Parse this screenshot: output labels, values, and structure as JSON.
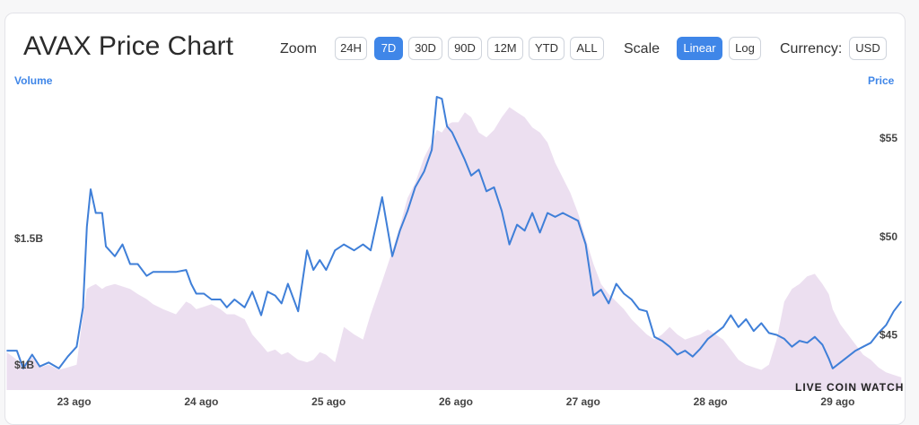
{
  "title": "AVAX Price Chart",
  "controls": {
    "zoom_label": "Zoom",
    "zoom_buttons": [
      "24H",
      "7D",
      "30D",
      "90D",
      "12M",
      "YTD",
      "ALL"
    ],
    "zoom_active": "7D",
    "scale_label": "Scale",
    "scale_buttons": [
      "Linear",
      "Log"
    ],
    "scale_active": "Linear",
    "currency_label": "Currency:",
    "currency_value": "USD"
  },
  "watermark": "LIVE COIN WATCH",
  "colors": {
    "price_line": "#3f7fd8",
    "volume_fill": "#ecdff0",
    "accent": "#3f86e8"
  },
  "chart_data": {
    "type": "line",
    "title": "AVAX Price Chart",
    "x_ticks": [
      "23 ago",
      "24 ago",
      "25 ago",
      "26 ago",
      "27 ago",
      "28 ago",
      "29 ago"
    ],
    "y_left": {
      "label": "Volume",
      "ticks": [
        "$1B",
        "$1.5B"
      ],
      "tick_values": [
        1.0,
        1.5
      ],
      "range": [
        0.9,
        2.1
      ]
    },
    "y_right": {
      "label": "Price",
      "ticks": [
        "$45",
        "$50",
        "$55"
      ],
      "tick_values": [
        45,
        50,
        55
      ],
      "range": [
        42.2,
        57.6
      ]
    },
    "x_range_days": [
      -0.54,
      6.54
    ],
    "series": [
      {
        "name": "Price",
        "axis": "right",
        "points": [
          [
            -0.53,
            44.2
          ],
          [
            -0.45,
            44.2
          ],
          [
            -0.4,
            43.3
          ],
          [
            -0.33,
            44.0
          ],
          [
            -0.27,
            43.4
          ],
          [
            -0.2,
            43.6
          ],
          [
            -0.12,
            43.3
          ],
          [
            -0.05,
            43.9
          ],
          [
            0.02,
            44.4
          ],
          [
            0.07,
            46.4
          ],
          [
            0.1,
            50.5
          ],
          [
            0.13,
            52.4
          ],
          [
            0.17,
            51.2
          ],
          [
            0.22,
            51.2
          ],
          [
            0.25,
            49.5
          ],
          [
            0.32,
            49.0
          ],
          [
            0.38,
            49.6
          ],
          [
            0.44,
            48.6
          ],
          [
            0.5,
            48.6
          ],
          [
            0.57,
            48.0
          ],
          [
            0.62,
            48.2
          ],
          [
            0.7,
            48.2
          ],
          [
            0.8,
            48.2
          ],
          [
            0.88,
            48.3
          ],
          [
            0.92,
            47.6
          ],
          [
            0.96,
            47.1
          ],
          [
            1.02,
            47.1
          ],
          [
            1.08,
            46.8
          ],
          [
            1.15,
            46.8
          ],
          [
            1.2,
            46.4
          ],
          [
            1.26,
            46.8
          ],
          [
            1.34,
            46.4
          ],
          [
            1.4,
            47.2
          ],
          [
            1.47,
            46.0
          ],
          [
            1.52,
            47.2
          ],
          [
            1.58,
            47.0
          ],
          [
            1.63,
            46.6
          ],
          [
            1.68,
            47.6
          ],
          [
            1.76,
            46.2
          ],
          [
            1.83,
            49.3
          ],
          [
            1.88,
            48.3
          ],
          [
            1.93,
            48.8
          ],
          [
            1.98,
            48.3
          ],
          [
            2.05,
            49.3
          ],
          [
            2.12,
            49.6
          ],
          [
            2.2,
            49.3
          ],
          [
            2.27,
            49.6
          ],
          [
            2.33,
            49.3
          ],
          [
            2.42,
            52.0
          ],
          [
            2.5,
            49.0
          ],
          [
            2.56,
            50.3
          ],
          [
            2.62,
            51.3
          ],
          [
            2.68,
            52.5
          ],
          [
            2.75,
            53.3
          ],
          [
            2.81,
            54.4
          ],
          [
            2.85,
            57.1
          ],
          [
            2.89,
            57.0
          ],
          [
            2.93,
            55.6
          ],
          [
            2.97,
            55.3
          ],
          [
            3.02,
            54.6
          ],
          [
            3.07,
            53.9
          ],
          [
            3.12,
            53.1
          ],
          [
            3.18,
            53.4
          ],
          [
            3.24,
            52.3
          ],
          [
            3.3,
            52.5
          ],
          [
            3.36,
            51.3
          ],
          [
            3.42,
            49.6
          ],
          [
            3.48,
            50.6
          ],
          [
            3.54,
            50.3
          ],
          [
            3.6,
            51.2
          ],
          [
            3.66,
            50.2
          ],
          [
            3.72,
            51.2
          ],
          [
            3.78,
            51.0
          ],
          [
            3.84,
            51.2
          ],
          [
            3.9,
            51.0
          ],
          [
            3.96,
            50.8
          ],
          [
            4.02,
            49.6
          ],
          [
            4.08,
            47.0
          ],
          [
            4.14,
            47.3
          ],
          [
            4.2,
            46.6
          ],
          [
            4.26,
            47.6
          ],
          [
            4.32,
            47.1
          ],
          [
            4.38,
            46.8
          ],
          [
            4.44,
            46.3
          ],
          [
            4.5,
            46.2
          ],
          [
            4.56,
            44.9
          ],
          [
            4.62,
            44.7
          ],
          [
            4.68,
            44.4
          ],
          [
            4.74,
            44.0
          ],
          [
            4.8,
            44.2
          ],
          [
            4.86,
            43.9
          ],
          [
            4.92,
            44.3
          ],
          [
            4.98,
            44.8
          ],
          [
            5.04,
            45.1
          ],
          [
            5.1,
            45.4
          ],
          [
            5.16,
            46.0
          ],
          [
            5.22,
            45.4
          ],
          [
            5.28,
            45.8
          ],
          [
            5.34,
            45.2
          ],
          [
            5.4,
            45.6
          ],
          [
            5.46,
            45.1
          ],
          [
            5.52,
            45.0
          ],
          [
            5.58,
            44.8
          ],
          [
            5.64,
            44.4
          ],
          [
            5.7,
            44.7
          ],
          [
            5.76,
            44.6
          ],
          [
            5.82,
            44.9
          ],
          [
            5.88,
            44.5
          ],
          [
            5.93,
            43.8
          ],
          [
            5.96,
            43.3
          ],
          [
            6.02,
            43.6
          ],
          [
            6.08,
            43.9
          ],
          [
            6.14,
            44.2
          ],
          [
            6.2,
            44.4
          ],
          [
            6.26,
            44.6
          ],
          [
            6.32,
            45.1
          ],
          [
            6.38,
            45.5
          ],
          [
            6.44,
            46.2
          ],
          [
            6.5,
            46.7
          ]
        ]
      },
      {
        "name": "Volume",
        "axis": "left",
        "type": "area",
        "points": [
          [
            -0.53,
            1.05
          ],
          [
            -0.45,
            1.02
          ],
          [
            -0.4,
            1.0
          ],
          [
            -0.33,
            1.03
          ],
          [
            -0.27,
            0.99
          ],
          [
            -0.2,
            1.0
          ],
          [
            -0.12,
            0.98
          ],
          [
            -0.05,
            0.99
          ],
          [
            0.02,
            1.0
          ],
          [
            0.07,
            1.2
          ],
          [
            0.1,
            1.3
          ],
          [
            0.13,
            1.31
          ],
          [
            0.17,
            1.32
          ],
          [
            0.22,
            1.3
          ],
          [
            0.25,
            1.31
          ],
          [
            0.32,
            1.32
          ],
          [
            0.38,
            1.31
          ],
          [
            0.44,
            1.3
          ],
          [
            0.5,
            1.28
          ],
          [
            0.57,
            1.26
          ],
          [
            0.62,
            1.24
          ],
          [
            0.7,
            1.22
          ],
          [
            0.8,
            1.2
          ],
          [
            0.88,
            1.25
          ],
          [
            0.92,
            1.24
          ],
          [
            0.96,
            1.22
          ],
          [
            1.02,
            1.23
          ],
          [
            1.08,
            1.24
          ],
          [
            1.15,
            1.22
          ],
          [
            1.2,
            1.2
          ],
          [
            1.26,
            1.2
          ],
          [
            1.34,
            1.18
          ],
          [
            1.4,
            1.12
          ],
          [
            1.47,
            1.08
          ],
          [
            1.52,
            1.05
          ],
          [
            1.58,
            1.06
          ],
          [
            1.63,
            1.04
          ],
          [
            1.68,
            1.05
          ],
          [
            1.76,
            1.02
          ],
          [
            1.83,
            1.01
          ],
          [
            1.88,
            1.02
          ],
          [
            1.93,
            1.05
          ],
          [
            1.98,
            1.04
          ],
          [
            2.05,
            1.01
          ],
          [
            2.12,
            1.15
          ],
          [
            2.2,
            1.12
          ],
          [
            2.27,
            1.1
          ],
          [
            2.33,
            1.2
          ],
          [
            2.42,
            1.33
          ],
          [
            2.5,
            1.45
          ],
          [
            2.56,
            1.55
          ],
          [
            2.62,
            1.66
          ],
          [
            2.68,
            1.72
          ],
          [
            2.75,
            1.82
          ],
          [
            2.81,
            1.88
          ],
          [
            2.85,
            1.93
          ],
          [
            2.89,
            1.92
          ],
          [
            2.93,
            1.95
          ],
          [
            2.97,
            1.96
          ],
          [
            3.02,
            1.96
          ],
          [
            3.07,
            2.0
          ],
          [
            3.12,
            1.98
          ],
          [
            3.18,
            1.92
          ],
          [
            3.24,
            1.9
          ],
          [
            3.3,
            1.93
          ],
          [
            3.36,
            1.98
          ],
          [
            3.42,
            2.02
          ],
          [
            3.48,
            2.0
          ],
          [
            3.54,
            1.98
          ],
          [
            3.6,
            1.94
          ],
          [
            3.66,
            1.92
          ],
          [
            3.72,
            1.88
          ],
          [
            3.78,
            1.8
          ],
          [
            3.84,
            1.74
          ],
          [
            3.9,
            1.68
          ],
          [
            3.96,
            1.6
          ],
          [
            4.02,
            1.5
          ],
          [
            4.08,
            1.4
          ],
          [
            4.14,
            1.32
          ],
          [
            4.2,
            1.28
          ],
          [
            4.26,
            1.25
          ],
          [
            4.32,
            1.22
          ],
          [
            4.38,
            1.18
          ],
          [
            4.44,
            1.15
          ],
          [
            4.5,
            1.12
          ],
          [
            4.56,
            1.1
          ],
          [
            4.62,
            1.12
          ],
          [
            4.68,
            1.15
          ],
          [
            4.74,
            1.12
          ],
          [
            4.8,
            1.1
          ],
          [
            4.86,
            1.11
          ],
          [
            4.92,
            1.12
          ],
          [
            4.98,
            1.14
          ],
          [
            5.04,
            1.12
          ],
          [
            5.1,
            1.1
          ],
          [
            5.16,
            1.06
          ],
          [
            5.22,
            1.02
          ],
          [
            5.28,
            1.0
          ],
          [
            5.34,
            0.99
          ],
          [
            5.4,
            0.98
          ],
          [
            5.46,
            1.0
          ],
          [
            5.52,
            1.1
          ],
          [
            5.58,
            1.25
          ],
          [
            5.64,
            1.3
          ],
          [
            5.7,
            1.32
          ],
          [
            5.76,
            1.35
          ],
          [
            5.82,
            1.36
          ],
          [
            5.88,
            1.32
          ],
          [
            5.93,
            1.28
          ],
          [
            5.96,
            1.22
          ],
          [
            6.02,
            1.16
          ],
          [
            6.08,
            1.12
          ],
          [
            6.14,
            1.08
          ],
          [
            6.2,
            1.04
          ],
          [
            6.26,
            1.02
          ],
          [
            6.32,
            0.99
          ],
          [
            6.38,
            0.97
          ],
          [
            6.44,
            0.96
          ],
          [
            6.5,
            0.95
          ]
        ]
      }
    ],
    "grid": false,
    "legend": "none"
  }
}
